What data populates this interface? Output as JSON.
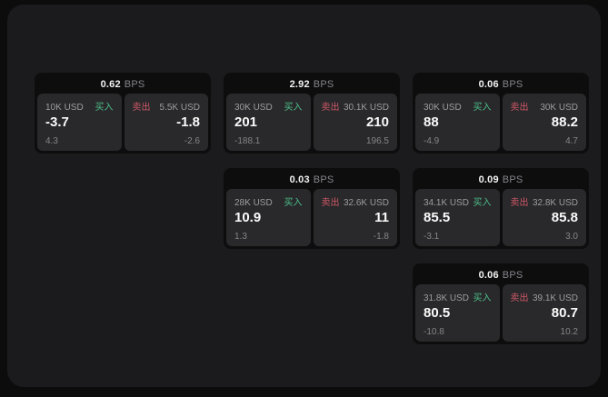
{
  "colors": {
    "outer_bg": "#0c0c0c",
    "panel_bg": "#1b1b1d",
    "card_bg": "#0d0d0e",
    "tile_bg": "#29292b",
    "value_text": "#fafafa",
    "muted_text": "#85858a",
    "buy_green": "#4cbf8a",
    "sell_red": "#cf5767"
  },
  "labels": {
    "bps_unit": "BPS",
    "buy": "买入",
    "sell": "卖出"
  },
  "cards": [
    {
      "bps": "0.62",
      "grid": {
        "row": 1,
        "col": 1
      },
      "buy": {
        "amount": "10K USD",
        "value": "-3.7",
        "delta": "4.3"
      },
      "sell": {
        "amount": "5.5K USD",
        "value": "-1.8",
        "delta": "-2.6"
      }
    },
    {
      "bps": "2.92",
      "grid": {
        "row": 1,
        "col": 2
      },
      "buy": {
        "amount": "30K USD",
        "value": "201",
        "delta": "-188.1"
      },
      "sell": {
        "amount": "30.1K USD",
        "value": "210",
        "delta": "196.5"
      }
    },
    {
      "bps": "0.06",
      "grid": {
        "row": 1,
        "col": 3
      },
      "buy": {
        "amount": "30K USD",
        "value": "88",
        "delta": "-4.9"
      },
      "sell": {
        "amount": "30K USD",
        "value": "88.2",
        "delta": "4.7"
      }
    },
    {
      "bps": "0.03",
      "grid": {
        "row": 2,
        "col": 2
      },
      "buy": {
        "amount": "28K USD",
        "value": "10.9",
        "delta": "1.3"
      },
      "sell": {
        "amount": "32.6K USD",
        "value": "11",
        "delta": "-1.8"
      }
    },
    {
      "bps": "0.09",
      "grid": {
        "row": 2,
        "col": 3
      },
      "buy": {
        "amount": "34.1K USD",
        "value": "85.5",
        "delta": "-3.1"
      },
      "sell": {
        "amount": "32.8K USD",
        "value": "85.8",
        "delta": "3.0"
      }
    },
    {
      "bps": "0.06",
      "grid": {
        "row": 3,
        "col": 3
      },
      "buy": {
        "amount": "31.8K USD",
        "value": "80.5",
        "delta": "-10.8"
      },
      "sell": {
        "amount": "39.1K USD",
        "value": "80.7",
        "delta": "10.2"
      }
    }
  ]
}
